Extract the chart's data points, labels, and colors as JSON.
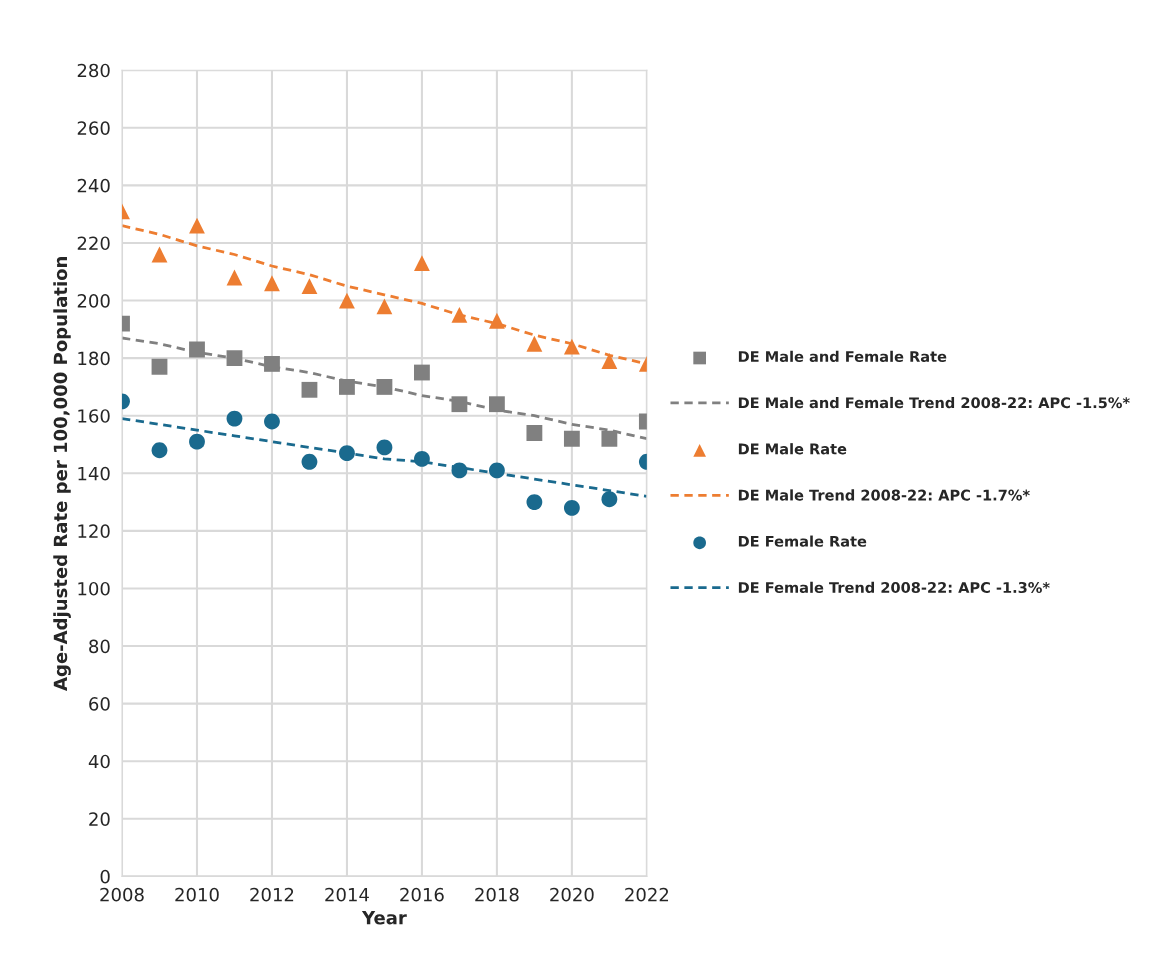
{
  "chart_data": {
    "type": "scatter",
    "xlabel": "Year",
    "ylabel": "Age-Adjusted Rate per 100,000 Population",
    "x": [
      2008,
      2009,
      2010,
      2011,
      2012,
      2013,
      2014,
      2015,
      2016,
      2017,
      2018,
      2019,
      2020,
      2021,
      2022
    ],
    "series": [
      {
        "name": "DE Male and Female Rate",
        "type": "scatter",
        "marker": "square",
        "color": "#808080",
        "values": [
          192,
          177,
          183,
          180,
          178,
          169,
          170,
          170,
          175,
          164,
          164,
          154,
          152,
          152,
          158
        ]
      },
      {
        "name": "DE Male and Female Trend 2008-22: APC -1.5%*",
        "type": "line",
        "line_style": "dashed",
        "color": "#808080",
        "values": [
          187,
          185,
          182,
          180,
          177,
          175,
          172,
          170,
          167,
          165,
          162,
          160,
          157,
          155,
          152
        ]
      },
      {
        "name": "DE Male Rate",
        "type": "scatter",
        "marker": "triangle",
        "color": "#ed7d31",
        "values": [
          231,
          216,
          226,
          208,
          206,
          205,
          200,
          198,
          213,
          195,
          193,
          185,
          184,
          179,
          178
        ]
      },
      {
        "name": "DE Male Trend 2008-22: APC -1.7%*",
        "type": "line",
        "line_style": "dashed",
        "color": "#ed7d31",
        "values": [
          226,
          223,
          219,
          216,
          212,
          209,
          205,
          202,
          199,
          195,
          192,
          188,
          185,
          181,
          178
        ]
      },
      {
        "name": "DE Female Rate",
        "type": "scatter",
        "marker": "circle",
        "color": "#1a6a8e",
        "values": [
          165,
          148,
          151,
          159,
          158,
          144,
          147,
          149,
          145,
          141,
          141,
          130,
          128,
          131,
          144
        ]
      },
      {
        "name": "DE Female Trend 2008-22: APC -1.3%*",
        "type": "line",
        "line_style": "dashed",
        "color": "#1a6a8e",
        "values": [
          159,
          157,
          155,
          153,
          151,
          149,
          147,
          145,
          144,
          142,
          140,
          138,
          136,
          134,
          132
        ]
      }
    ],
    "xlim": [
      2008,
      2022
    ],
    "xticks": [
      2008,
      2010,
      2012,
      2014,
      2016,
      2018,
      2020,
      2022
    ],
    "ylim": [
      0,
      280
    ],
    "yticks": [
      0,
      20,
      40,
      60,
      80,
      100,
      120,
      140,
      160,
      180,
      200,
      220,
      240,
      260,
      280
    ],
    "grid": true,
    "legend": "right"
  }
}
